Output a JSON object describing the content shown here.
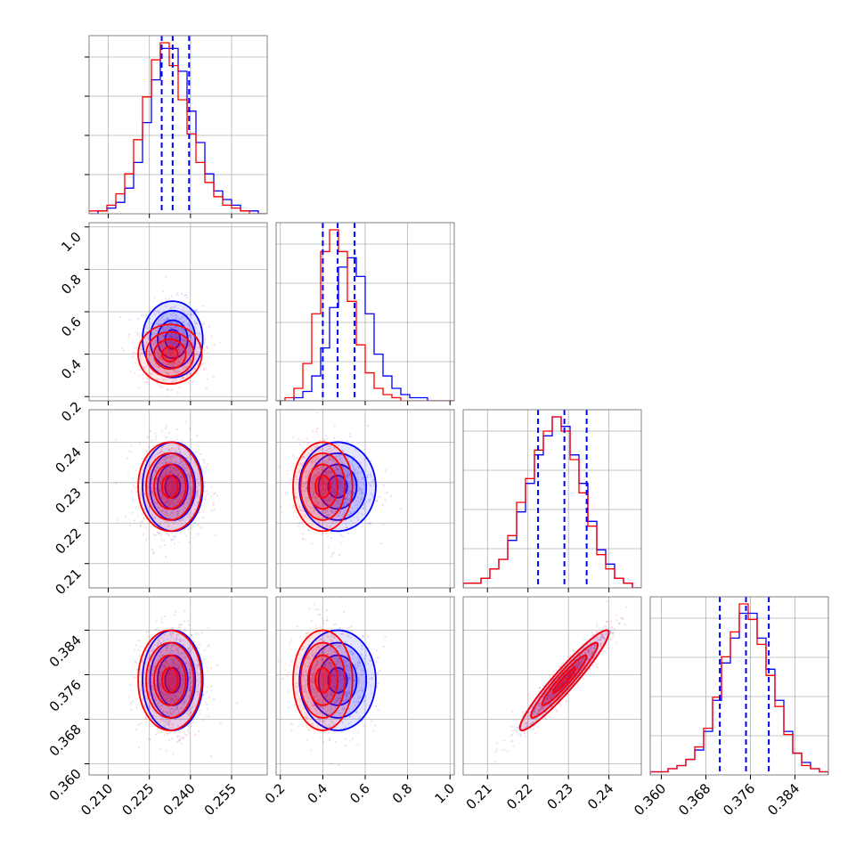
{
  "chart_data": {
    "type": "corner",
    "grid": true,
    "parameters": [
      {
        "index": 0,
        "range": [
          0.203,
          0.268
        ],
        "ticks": [
          0.21,
          0.225,
          0.24,
          0.255
        ],
        "tick_labels": [
          "0.210",
          "0.225",
          "0.240",
          "0.255"
        ]
      },
      {
        "index": 1,
        "range": [
          0.18,
          1.02
        ],
        "ticks": [
          0.2,
          0.4,
          0.6,
          0.8,
          1.0
        ],
        "tick_labels": [
          "0.2",
          "0.4",
          "0.6",
          "0.8",
          "1.0"
        ]
      },
      {
        "index": 2,
        "range": [
          0.204,
          0.248
        ],
        "ticks": [
          0.21,
          0.22,
          0.23,
          0.24
        ],
        "tick_labels": [
          "0.21",
          "0.22",
          "0.23",
          "0.24"
        ]
      },
      {
        "index": 3,
        "range": [
          0.358,
          0.39
        ],
        "ticks": [
          0.36,
          0.368,
          0.376,
          0.384
        ],
        "tick_labels": [
          "0.360",
          "0.368",
          "0.376",
          "0.384"
        ]
      }
    ],
    "series": [
      {
        "color": "#0000ff",
        "means": [
          0.2335,
          0.47,
          0.229,
          0.375
        ],
        "sds": [
          0.0055,
          0.09,
          0.0055,
          0.0045
        ],
        "quantile_lines": [
          [
            0.2295,
            0.2335,
            0.2395
          ],
          [
            0.4,
            0.47,
            0.55
          ],
          [
            0.2225,
            0.229,
            0.2345
          ],
          [
            0.3705,
            0.3752,
            0.3793
          ]
        ],
        "hist": [
          {
            "edges": [
              0.203,
              0.268
            ],
            "counts": [
              0,
              1,
              2,
              4,
              9,
              18,
              32,
              47,
              58,
              58,
              50,
              36,
              25,
              14,
              8,
              5,
              3,
              1,
              1,
              0
            ]
          },
          {
            "edges": [
              0.18,
              1.02
            ],
            "counts": [
              0,
              0,
              1,
              3,
              8,
              17,
              30,
              43,
              46,
              40,
              28,
              15,
              8,
              4,
              2,
              1,
              1,
              0,
              0,
              0
            ]
          },
          {
            "edges": [
              0.204,
              0.248
            ],
            "counts": [
              1,
              1,
              2,
              4,
              6,
              10,
              16,
              22,
              28,
              32,
              36,
              34,
              28,
              22,
              14,
              8,
              5,
              2,
              1,
              0
            ]
          },
          {
            "edges": [
              0.358,
              0.39
            ],
            "counts": [
              1,
              1,
              2,
              3,
              5,
              8,
              14,
              24,
              36,
              44,
              52,
              52,
              44,
              34,
              24,
              14,
              7,
              4,
              2,
              1
            ]
          }
        ]
      },
      {
        "color": "#ff0000",
        "means": [
          0.2325,
          0.4,
          0.229,
          0.375
        ],
        "sds": [
          0.0058,
          0.07,
          0.0055,
          0.0045
        ],
        "hist": [
          {
            "edges": [
              0.203,
              0.268
            ],
            "counts": [
              1,
              1,
              3,
              7,
              14,
              26,
              41,
              54,
              60,
              52,
              40,
              28,
              18,
              11,
              6,
              3,
              2,
              1,
              0,
              0
            ]
          },
          {
            "edges": [
              0.18,
              1.02
            ],
            "counts": [
              0,
              1,
              4,
              12,
              28,
              48,
              55,
              48,
              32,
              18,
              9,
              4,
              2,
              1,
              0,
              0,
              0,
              0,
              0,
              0
            ]
          },
          {
            "edges": [
              0.204,
              0.248
            ],
            "counts": [
              1,
              1,
              2,
              4,
              6,
              11,
              18,
              23,
              29,
              33,
              36,
              33,
              27,
              20,
              13,
              7,
              4,
              2,
              1,
              0
            ]
          },
          {
            "edges": [
              0.358,
              0.39
            ],
            "counts": [
              1,
              1,
              2,
              3,
              5,
              9,
              15,
              25,
              38,
              46,
              55,
              50,
              42,
              32,
              22,
              13,
              7,
              3,
              2,
              1
            ]
          }
        ]
      }
    ]
  }
}
